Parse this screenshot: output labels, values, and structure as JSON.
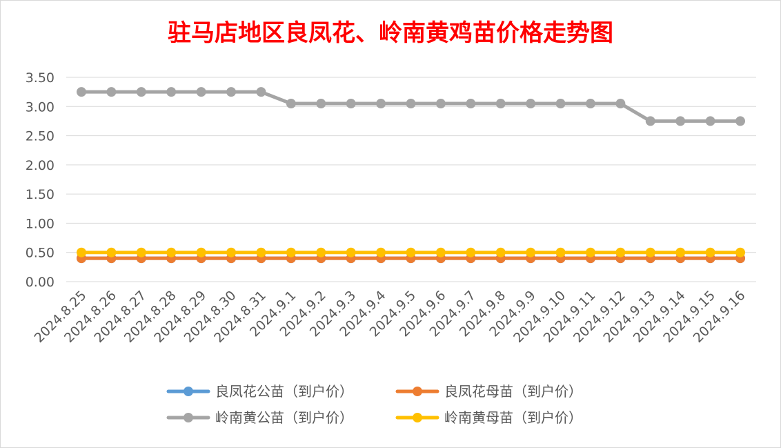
{
  "chart_data": {
    "type": "line",
    "title": "驻马店地区良凤花、岭南黄鸡苗价格走势图",
    "xlabel": "",
    "ylabel": "",
    "ylim": [
      0,
      3.5
    ],
    "yticks": [
      "0.00",
      "0.50",
      "1.00",
      "1.50",
      "2.00",
      "2.50",
      "3.00",
      "3.50"
    ],
    "grid": true,
    "legend_position": "bottom",
    "categories": [
      "2024.8.25",
      "2024.8.26",
      "2024.8.27",
      "2024.8.28",
      "2024.8.29",
      "2024.8.30",
      "2024.8.31",
      "2024.9.1",
      "2024.9.2",
      "2024.9.3",
      "2024.9.4",
      "2024.9.5",
      "2024.9.6",
      "2024.9.7",
      "2024.9.8",
      "2024.9.9",
      "2024.9.10",
      "2024.9.11",
      "2024.9.12",
      "2024.9.13",
      "2024.9.14",
      "2024.9.15",
      "2024.9.16"
    ],
    "series": [
      {
        "name": "良凤花公苗（到户价）",
        "color": "#5b9bd5",
        "values": [
          0.4,
          0.4,
          0.4,
          0.4,
          0.4,
          0.4,
          0.4,
          0.4,
          0.4,
          0.4,
          0.4,
          0.4,
          0.4,
          0.4,
          0.4,
          0.4,
          0.4,
          0.4,
          0.4,
          0.4,
          0.4,
          0.4,
          0.4
        ]
      },
      {
        "name": "良凤花母苗（到户价）",
        "color": "#ed7d31",
        "values": [
          0.4,
          0.4,
          0.4,
          0.4,
          0.4,
          0.4,
          0.4,
          0.4,
          0.4,
          0.4,
          0.4,
          0.4,
          0.4,
          0.4,
          0.4,
          0.4,
          0.4,
          0.4,
          0.4,
          0.4,
          0.4,
          0.4,
          0.4
        ]
      },
      {
        "name": "岭南黄公苗（到户价）",
        "color": "#a5a5a5",
        "values": [
          3.25,
          3.25,
          3.25,
          3.25,
          3.25,
          3.25,
          3.25,
          3.05,
          3.05,
          3.05,
          3.05,
          3.05,
          3.05,
          3.05,
          3.05,
          3.05,
          3.05,
          3.05,
          3.05,
          2.75,
          2.75,
          2.75,
          2.75
        ]
      },
      {
        "name": "岭南黄母苗（到户价）",
        "color": "#ffc000",
        "values": [
          0.5,
          0.5,
          0.5,
          0.5,
          0.5,
          0.5,
          0.5,
          0.5,
          0.5,
          0.5,
          0.5,
          0.5,
          0.5,
          0.5,
          0.5,
          0.5,
          0.5,
          0.5,
          0.5,
          0.5,
          0.5,
          0.5,
          0.5
        ]
      }
    ]
  }
}
